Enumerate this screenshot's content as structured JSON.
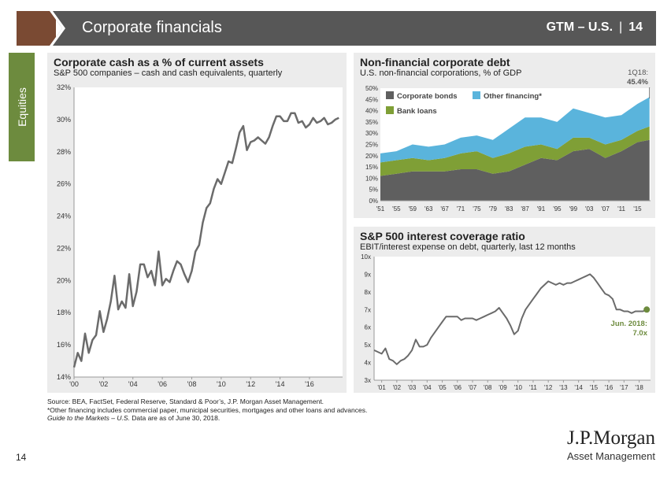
{
  "header": {
    "title": "Corporate financials",
    "section": "GTM – U.S.",
    "page": "14"
  },
  "side_tab": {
    "label": "Equities"
  },
  "footer": {
    "source": "Source: BEA, FactSet, Federal Reserve, Standard & Poor’s, J.P. Morgan Asset Management.",
    "note": "*Other financing includes commercial paper, municipal securities, mortgages and other loans and advances.",
    "guide_italic": "Guide to the Markets – U.S.",
    "guide_rest": " Data are as of June 30, 2018.",
    "page_number": "14"
  },
  "logo": {
    "line1": "J.P.Morgan",
    "line2": "Asset Management"
  },
  "colors": {
    "olive": "#6d8b3e",
    "header": "#575757",
    "accent": "#7a4a33",
    "line": "#6b6b6b",
    "blue": "#5ab4dc",
    "green": "#7f9f36",
    "dark": "#5f5f5f"
  },
  "chart_data": [
    {
      "id": "cash",
      "type": "line",
      "title": "Corporate cash as a % of current assets",
      "subtitle": "S&P 500 companies – cash and cash equivalents, quarterly",
      "ylim": [
        14,
        32
      ],
      "yticks": [
        14,
        16,
        18,
        20,
        22,
        24,
        26,
        28,
        30,
        32
      ],
      "ytick_labels": [
        "14%",
        "16%",
        "18%",
        "20%",
        "22%",
        "24%",
        "26%",
        "28%",
        "30%",
        "32%"
      ],
      "xlim": [
        2000,
        2018.25
      ],
      "xticks": [
        2000,
        2002,
        2004,
        2006,
        2008,
        2010,
        2012,
        2014,
        2016
      ],
      "xtick_labels": [
        "'00",
        "'02",
        "'04",
        "'06",
        "'08",
        "'10",
        "'12",
        "'14",
        "'16"
      ],
      "x": [
        2000.0,
        2000.25,
        2000.5,
        2000.75,
        2001.0,
        2001.25,
        2001.5,
        2001.75,
        2002.0,
        2002.25,
        2002.5,
        2002.75,
        2003.0,
        2003.25,
        2003.5,
        2003.75,
        2004.0,
        2004.25,
        2004.5,
        2004.75,
        2005.0,
        2005.25,
        2005.5,
        2005.75,
        2006.0,
        2006.25,
        2006.5,
        2006.75,
        2007.0,
        2007.25,
        2007.5,
        2007.75,
        2008.0,
        2008.25,
        2008.5,
        2008.75,
        2009.0,
        2009.25,
        2009.5,
        2009.75,
        2010.0,
        2010.25,
        2010.5,
        2010.75,
        2011.0,
        2011.25,
        2011.5,
        2011.75,
        2012.0,
        2012.25,
        2012.5,
        2012.75,
        2013.0,
        2013.25,
        2013.5,
        2013.75,
        2014.0,
        2014.25,
        2014.5,
        2014.75,
        2015.0,
        2015.25,
        2015.5,
        2015.75,
        2016.0,
        2016.25,
        2016.5,
        2016.75,
        2017.0,
        2017.25,
        2017.5,
        2017.75,
        2018.0
      ],
      "values": [
        14.6,
        15.5,
        15.0,
        16.7,
        15.5,
        16.3,
        16.6,
        18.1,
        16.8,
        17.6,
        18.7,
        20.3,
        18.2,
        18.7,
        18.3,
        20.4,
        18.4,
        19.3,
        21.0,
        21.0,
        20.2,
        20.6,
        19.7,
        21.8,
        19.7,
        20.1,
        19.9,
        20.6,
        21.2,
        21.0,
        20.4,
        19.9,
        20.6,
        21.8,
        22.2,
        23.6,
        24.5,
        24.8,
        25.7,
        26.3,
        26.0,
        26.7,
        27.4,
        27.3,
        28.2,
        29.2,
        29.6,
        28.1,
        28.6,
        28.7,
        28.9,
        28.7,
        28.5,
        28.9,
        29.6,
        30.2,
        30.2,
        29.9,
        29.9,
        30.4,
        30.4,
        29.8,
        29.9,
        29.5,
        29.7,
        30.1,
        29.8,
        29.9,
        30.1,
        29.7,
        29.8,
        30.0,
        30.1
      ]
    },
    {
      "id": "debt",
      "type": "area",
      "title": "Non-financial corporate debt",
      "subtitle": "U.S. non-financial corporations, % of GDP",
      "ylim": [
        0,
        50
      ],
      "yticks": [
        0,
        5,
        10,
        15,
        20,
        25,
        30,
        35,
        40,
        45,
        50
      ],
      "ytick_labels": [
        "0%",
        "5%",
        "10%",
        "15%",
        "20%",
        "25%",
        "30%",
        "35%",
        "40%",
        "45%",
        "50%"
      ],
      "xlim": [
        1951,
        2018.25
      ],
      "xticks": [
        1951,
        1955,
        1959,
        1963,
        1967,
        1971,
        1975,
        1979,
        1983,
        1987,
        1991,
        1995,
        1999,
        2003,
        2007,
        2011,
        2015
      ],
      "xtick_labels": [
        "'51",
        "'55",
        "'59",
        "'63",
        "'67",
        "'71",
        "'75",
        "'79",
        "'83",
        "'87",
        "'91",
        "'95",
        "'99",
        "'03",
        "'07",
        "'11",
        "'15"
      ],
      "x": [
        1951,
        1955,
        1959,
        1963,
        1967,
        1971,
        1975,
        1979,
        1983,
        1987,
        1991,
        1995,
        1999,
        2003,
        2007,
        2011,
        2015,
        2018
      ],
      "series": [
        {
          "name": "Corporate bonds",
          "values": [
            11,
            12,
            13,
            13,
            13,
            14,
            14,
            12,
            13,
            16,
            19,
            18,
            22,
            23,
            19,
            22,
            26,
            27
          ]
        },
        {
          "name": "Bank loans",
          "values": [
            6,
            6,
            6,
            5,
            6,
            7,
            8,
            7,
            8,
            8,
            6,
            5,
            6,
            5,
            6,
            5,
            5,
            6
          ]
        },
        {
          "name": "Other financing*",
          "values": [
            4,
            4,
            6,
            6,
            6,
            7,
            7,
            8,
            11,
            13,
            12,
            12,
            13,
            11,
            12,
            11,
            12,
            13
          ]
        }
      ],
      "annotation": {
        "label": "1Q18:",
        "value_label": "45.4%",
        "value": 45.4
      }
    },
    {
      "id": "coverage",
      "type": "line",
      "title": "S&P 500 interest coverage ratio",
      "subtitle": "EBIT/interest expense on debt, quarterly, last 12 months",
      "ylim": [
        3,
        10
      ],
      "yticks": [
        3,
        4,
        5,
        6,
        7,
        8,
        9,
        10
      ],
      "ytick_labels": [
        "3x",
        "4x",
        "5x",
        "6x",
        "7x",
        "8x",
        "9x",
        "10x"
      ],
      "xlim": [
        2000.5,
        2018.75
      ],
      "xticks": [
        2001,
        2002,
        2003,
        2004,
        2005,
        2006,
        2007,
        2008,
        2009,
        2010,
        2011,
        2012,
        2013,
        2014,
        2015,
        2016,
        2017,
        2018
      ],
      "xtick_labels": [
        "'01",
        "'02",
        "'03",
        "'04",
        "'05",
        "'06",
        "'07",
        "'08",
        "'09",
        "'10",
        "'11",
        "'12",
        "'13",
        "'14",
        "'15",
        "'16",
        "'17",
        "'18"
      ],
      "x": [
        2000.5,
        2000.75,
        2001.0,
        2001.25,
        2001.5,
        2001.75,
        2002.0,
        2002.25,
        2002.5,
        2002.75,
        2003.0,
        2003.25,
        2003.5,
        2003.75,
        2004.0,
        2004.25,
        2004.5,
        2004.75,
        2005.0,
        2005.25,
        2005.5,
        2005.75,
        2006.0,
        2006.25,
        2006.5,
        2006.75,
        2007.0,
        2007.25,
        2007.5,
        2007.75,
        2008.0,
        2008.25,
        2008.5,
        2008.75,
        2009.0,
        2009.25,
        2009.5,
        2009.75,
        2010.0,
        2010.25,
        2010.5,
        2010.75,
        2011.0,
        2011.25,
        2011.5,
        2011.75,
        2012.0,
        2012.25,
        2012.5,
        2012.75,
        2013.0,
        2013.25,
        2013.5,
        2013.75,
        2014.0,
        2014.25,
        2014.5,
        2014.75,
        2015.0,
        2015.25,
        2015.5,
        2015.75,
        2016.0,
        2016.25,
        2016.5,
        2016.75,
        2017.0,
        2017.25,
        2017.5,
        2017.75,
        2018.0,
        2018.25,
        2018.5
      ],
      "values": [
        4.7,
        4.6,
        4.5,
        4.8,
        4.2,
        4.1,
        3.9,
        4.1,
        4.2,
        4.4,
        4.7,
        5.3,
        4.9,
        4.9,
        5.0,
        5.4,
        5.7,
        6.0,
        6.3,
        6.6,
        6.6,
        6.6,
        6.6,
        6.4,
        6.5,
        6.5,
        6.5,
        6.4,
        6.5,
        6.6,
        6.7,
        6.8,
        6.9,
        7.1,
        6.8,
        6.5,
        6.1,
        5.6,
        5.8,
        6.5,
        7.0,
        7.3,
        7.6,
        7.9,
        8.2,
        8.4,
        8.6,
        8.5,
        8.4,
        8.5,
        8.4,
        8.5,
        8.5,
        8.6,
        8.7,
        8.8,
        8.9,
        9.0,
        8.8,
        8.5,
        8.2,
        7.9,
        7.8,
        7.6,
        7.0,
        7.0,
        6.9,
        6.9,
        6.8,
        6.9,
        6.9,
        6.9,
        7.0
      ],
      "annotation": {
        "label": "Jun. 2018:",
        "value_label": "7.0x",
        "value": 7.0
      }
    }
  ]
}
